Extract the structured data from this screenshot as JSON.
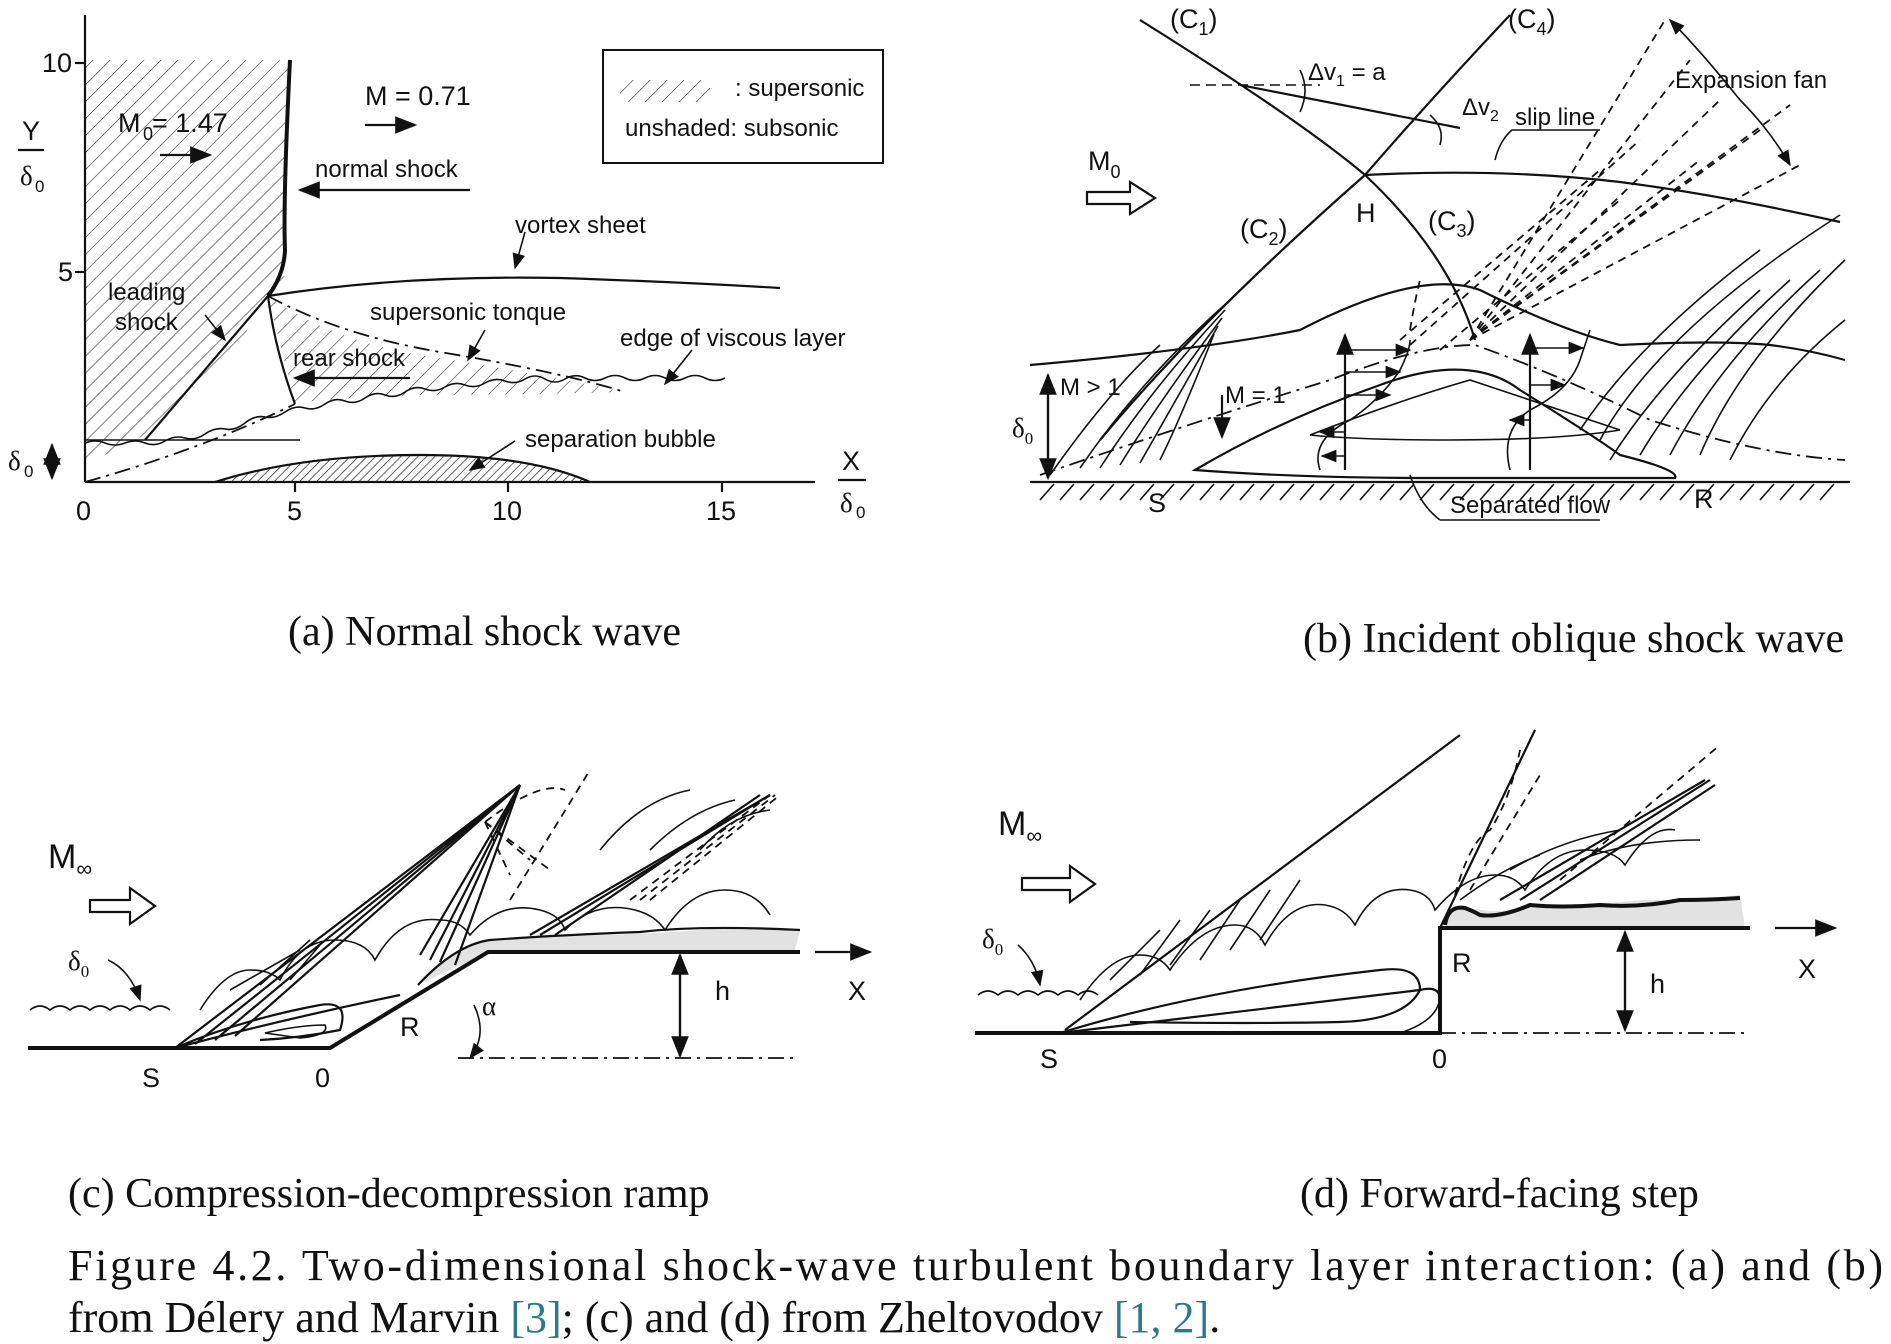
{
  "panel_a": {
    "caption": "(a) Normal shock wave",
    "y_axis_label_top": "Y",
    "y_axis_label_bottom": "δ",
    "y_axis_label_sub": "0",
    "x_axis_label_top": "X",
    "x_axis_label_bottom": "δ",
    "x_axis_label_sub": "0",
    "y_ticks": [
      "10",
      "5"
    ],
    "x_ticks": [
      "0",
      "5",
      "10",
      "15"
    ],
    "delta_label": "δ",
    "delta_sub": "0",
    "mach_upstream": "M",
    "mach_upstream_sub": "0",
    "mach_upstream_value": " = 1.47",
    "mach_downstream": "M = 0.71",
    "legend_supersonic": ": supersonic",
    "legend_subsonic": "unshaded: subsonic",
    "labels": {
      "normal_shock": "normal shock",
      "vortex_sheet": "vortex sheet",
      "leading_shock_1": "leading",
      "leading_shock_2": "shock",
      "supersonic_tongue": "supersonic tonque",
      "edge_viscous": "edge of viscous layer",
      "rear_shock": "rear shock",
      "separation_bubble": "separation bubble"
    }
  },
  "panel_b": {
    "caption": "(b) Incident oblique shock wave",
    "c1": "(C",
    "c1_sub": "1",
    "c2": "(C",
    "c2_sub": "2",
    "c3": "(C",
    "c3_sub": "3",
    "c4": "(C",
    "c4_sub": "4",
    "close_paren": ")",
    "dv1": "Δv",
    "dv1_sub": "1",
    "dv1_rest": " = a",
    "dv2": "Δv",
    "dv2_sub": "2",
    "slip_line": "slip line",
    "expansion_fan": "Expansion fan",
    "mach": "M",
    "mach_sub": "0",
    "point_h": "H",
    "m_gt_1": "M > 1",
    "m_eq_1": "M = 1",
    "delta": "δ",
    "delta_sub": "0",
    "point_s": "S",
    "point_r": "R",
    "separated_flow": "Separated flow"
  },
  "panel_c": {
    "caption": "(c) Compression-decompression ramp",
    "mach": "M",
    "mach_sub": "∞",
    "delta": "δ",
    "delta_sub": "0",
    "point_s": "S",
    "point_0": "0",
    "point_r": "R",
    "alpha": "α",
    "h": "h",
    "x": "X"
  },
  "panel_d": {
    "caption": "(d) Forward-facing step",
    "mach": "M",
    "mach_sub": "∞",
    "delta": "δ",
    "delta_sub": "0",
    "point_s": "S",
    "point_0": "0",
    "point_r": "R",
    "h": "h",
    "x": "X"
  },
  "figure_caption": {
    "line1": "Figure 4.2. Two-dimensional shock-wave turbulent boundary layer interaction: (a) and (b)",
    "line2_a": "from Délery and Marvin ",
    "line2_ref1": "[3]",
    "line2_b": "; (c) and (d) from Zheltovodov ",
    "line2_ref2": "[1, 2]",
    "line2_c": "."
  }
}
